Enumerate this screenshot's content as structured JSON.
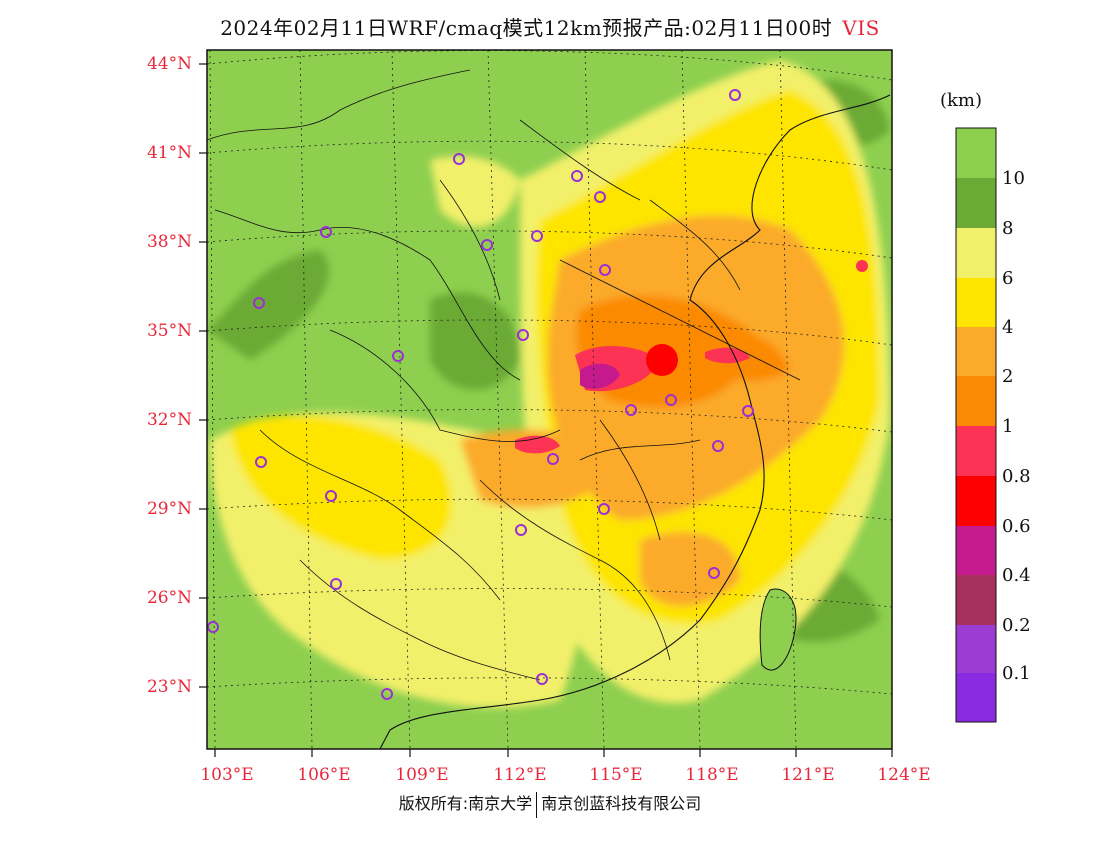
{
  "title": {
    "main": "2024年02月11日WRF/cmaq模式12km预报产品:02月11日00时",
    "variable": "VIS"
  },
  "axes": {
    "lat_labels": [
      "44°N",
      "41°N",
      "38°N",
      "35°N",
      "32°N",
      "29°N",
      "26°N",
      "23°N"
    ],
    "lon_labels": [
      "103°E",
      "106°E",
      "109°E",
      "112°E",
      "115°E",
      "118°E",
      "121°E",
      "124°E"
    ]
  },
  "colorbar": {
    "units": "(km)",
    "labels": [
      "10",
      "8",
      "6",
      "4",
      "2",
      "1",
      "0.8",
      "0.6",
      "0.4",
      "0.2",
      "0.1"
    ],
    "colors": [
      "#8ecf4f",
      "#6aaa35",
      "#f2f06a",
      "#fde500",
      "#fbaa2a",
      "#fb8a05",
      "#fd3355",
      "#fd0000",
      "#c51a8d",
      "#a8305f",
      "#9b3cd3",
      "#8a2be2"
    ]
  },
  "stations_legend": "city-station-circle-icon",
  "footer": {
    "copyright": "版权所有:南京大学",
    "company": "南京创蓝科技有限公司"
  }
}
